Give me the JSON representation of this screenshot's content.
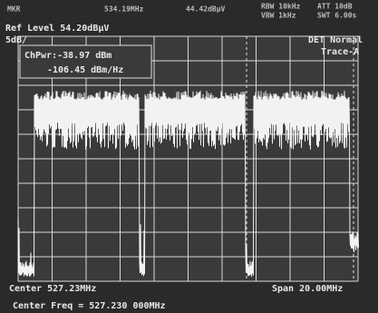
{
  "header": {
    "marker_label": "MKR",
    "marker_freq": "534.19MHz",
    "marker_level": "44.42dBμV",
    "rbw": "RBW 10kHz",
    "vbw": "VBW 1kHz",
    "att": "ATT 10dB",
    "swt": "SWT 6.00s"
  },
  "ref_level": "Ref Level  54.20dBμV",
  "scale": "5dB/",
  "detector": "DET  Normal",
  "trace": "Trace-A",
  "channel_power": {
    "power": "ChPwr:-38.97 dBm",
    "density": "-106.45 dBm/Hz"
  },
  "footer": {
    "center": "Center 527.23MHz",
    "span": "Span 20.00MHz",
    "center_freq": "Center Freq = 527.230 000MHz"
  }
}
